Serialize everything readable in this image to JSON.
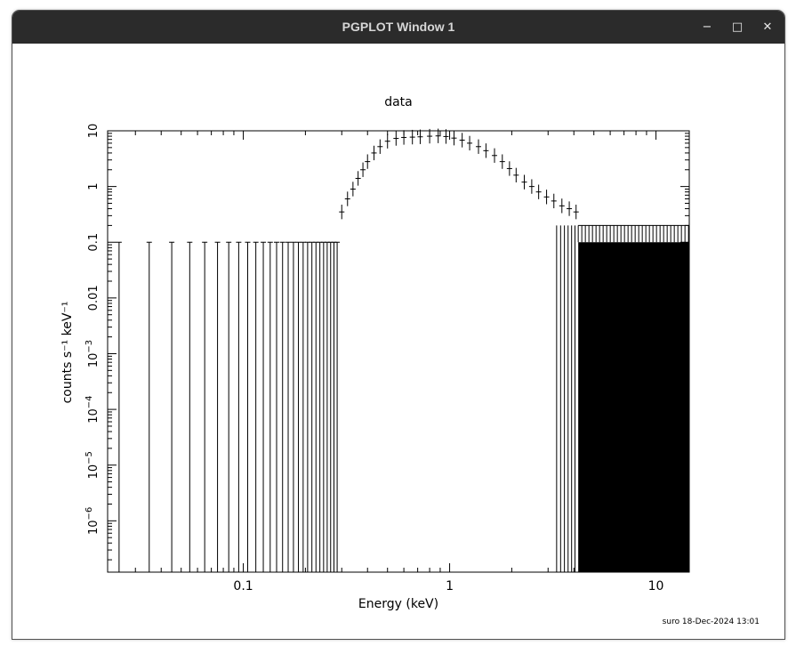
{
  "window": {
    "title": "PGPLOT Window 1",
    "controls": {
      "minimize": "−",
      "maximize": "□",
      "close": "✕"
    }
  },
  "footer": {
    "stamp": "suro 18-Dec-2024 13:01"
  },
  "chart_data": {
    "type": "scatter",
    "title": "data",
    "xlabel": "Energy (keV)",
    "ylabel": "counts s⁻¹ keV⁻¹",
    "xscale": "log",
    "yscale": "log",
    "xlim": [
      0.022,
      14.5
    ],
    "ylim": [
      1.2e-07,
      10
    ],
    "x_ticks": [
      {
        "value": 0.1,
        "label": "0.1"
      },
      {
        "value": 1,
        "label": "1"
      },
      {
        "value": 10,
        "label": "10"
      }
    ],
    "y_ticks": [
      {
        "value": 10,
        "label": "10"
      },
      {
        "value": 1,
        "label": "1"
      },
      {
        "value": 0.1,
        "label": "0.1"
      },
      {
        "value": 0.01,
        "label": "0.01"
      },
      {
        "value": 0.001,
        "label": "10",
        "sup": "−3"
      },
      {
        "value": 0.0001,
        "label": "10",
        "sup": "−4"
      },
      {
        "value": 1e-05,
        "label": "10",
        "sup": "−5"
      },
      {
        "value": 1e-06,
        "label": "10",
        "sup": "−6"
      }
    ],
    "low_energy_upper_limits": {
      "x": [
        0.025,
        0.035,
        0.045,
        0.055,
        0.065,
        0.075,
        0.085,
        0.095,
        0.105,
        0.115,
        0.125,
        0.135,
        0.145,
        0.155,
        0.165,
        0.175,
        0.185,
        0.195,
        0.205,
        0.215,
        0.225,
        0.235,
        0.245,
        0.255,
        0.265,
        0.275,
        0.285
      ],
      "y": 0.1
    },
    "spectrum": {
      "x": [
        0.3,
        0.32,
        0.34,
        0.36,
        0.38,
        0.4,
        0.43,
        0.46,
        0.5,
        0.55,
        0.6,
        0.66,
        0.72,
        0.8,
        0.88,
        0.96,
        1.05,
        1.15,
        1.25,
        1.38,
        1.5,
        1.65,
        1.8,
        1.95,
        2.1,
        2.3,
        2.5,
        2.7,
        2.95,
        3.2,
        3.5,
        3.8,
        4.1
      ],
      "y": [
        0.35,
        0.6,
        0.9,
        1.4,
        2.0,
        2.8,
        4.0,
        5.2,
        6.5,
        7.3,
        7.6,
        7.7,
        7.8,
        8.0,
        8.1,
        7.9,
        7.4,
        6.8,
        6.0,
        5.2,
        4.4,
        3.6,
        2.8,
        2.1,
        1.6,
        1.2,
        1.0,
        0.8,
        0.65,
        0.55,
        0.45,
        0.4,
        0.35
      ]
    },
    "high_energy_band": {
      "x": [
        4.2,
        14.5
      ],
      "y": [
        0.1,
        0.2
      ]
    }
  }
}
